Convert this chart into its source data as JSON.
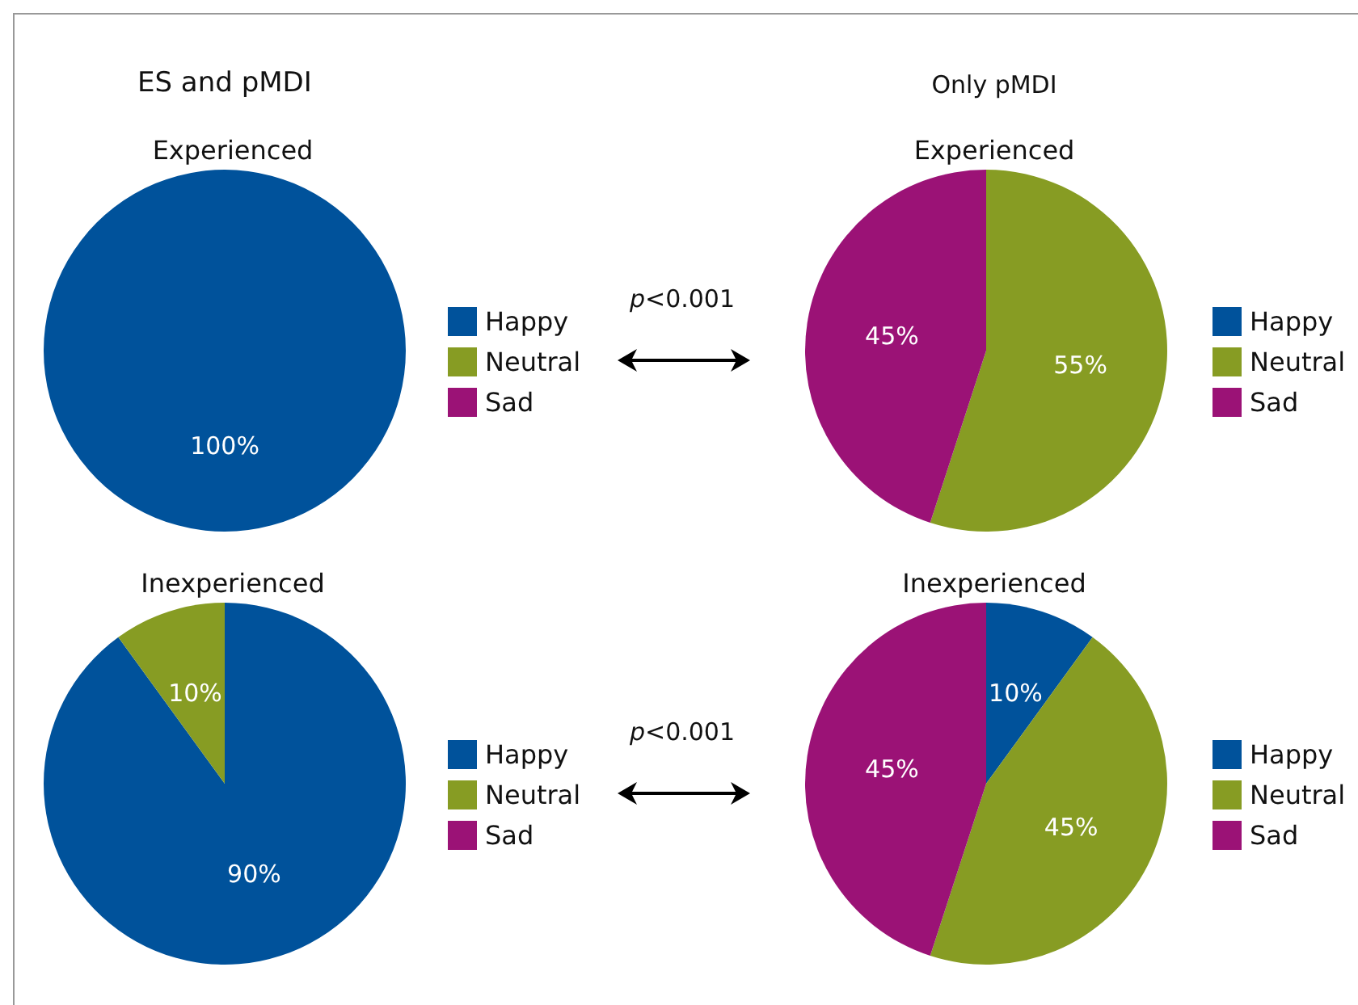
{
  "chart_data": [
    {
      "type": "pie",
      "title": "ES and pMDI",
      "subtitle": "Experienced",
      "categories": [
        "Happy",
        "Neutral",
        "Sad"
      ],
      "values": [
        100,
        0,
        0
      ],
      "value_labels": [
        "100%",
        null,
        null
      ],
      "colors": [
        "#00529b",
        "#879c23",
        "#9b1276"
      ],
      "legend": "right",
      "annotations": [
        "p<0.001"
      ]
    },
    {
      "type": "pie",
      "title": "Only pMDI",
      "subtitle": "Experienced",
      "categories": [
        "Happy",
        "Neutral",
        "Sad"
      ],
      "values": [
        0,
        55,
        45
      ],
      "value_labels": [
        null,
        "55%",
        "45%"
      ],
      "colors": [
        "#00529b",
        "#879c23",
        "#9b1276"
      ],
      "legend": "right"
    },
    {
      "type": "pie",
      "subtitle": "Inexperienced",
      "categories": [
        "Happy",
        "Neutral",
        "Sad"
      ],
      "values": [
        90,
        10,
        0
      ],
      "value_labels": [
        "90%",
        "10%",
        null
      ],
      "colors": [
        "#00529b",
        "#879c23",
        "#9b1276"
      ],
      "legend": "right",
      "annotations": [
        "p<0.001"
      ]
    },
    {
      "type": "pie",
      "subtitle": "Inexperienced",
      "categories": [
        "Happy",
        "Neutral",
        "Sad"
      ],
      "values": [
        10,
        45,
        45
      ],
      "value_labels": [
        "10%",
        "45%",
        "45%"
      ],
      "colors": [
        "#00529b",
        "#879c23",
        "#9b1276"
      ],
      "legend": "right"
    }
  ]
}
